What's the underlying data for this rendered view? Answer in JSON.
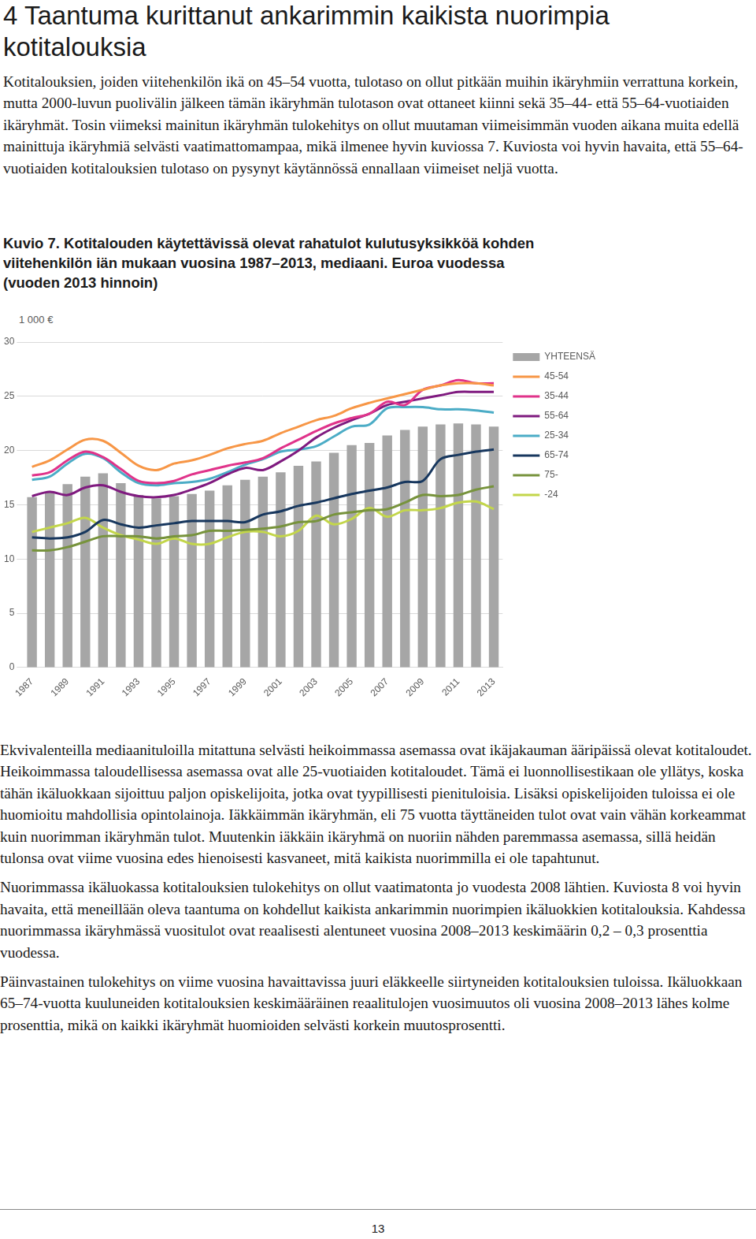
{
  "title": "4 Taantuma kurittanut ankarimmin kaikista nuorimpia kotitalouksia",
  "paragraphs_before": [
    "Kotitalouksien, joiden viitehenkilön ikä on 45–54 vuotta, tulotaso on ollut pitkään muihin ikäryhmiin verrattuna korkein, mutta 2000-luvun puolivälin jälkeen tämän ikäryhmän tulotason ovat ottaneet kiinni sekä 35–44- että 55–64-vuotiaiden ikäryhmät. Tosin viimeksi mainitun ikäryhmän tulokehitys on ollut muutaman viimeisimmän vuoden aikana muita edellä mainittuja ikäryhmiä selvästi vaatimattomampaa, mikä ilmenee hyvin kuviossa 7. Kuviosta voi hyvin havaita, että 55–64-vuotiaiden kotitalouksien tulotaso on pysynyt käytännössä ennallaan viimeiset neljä vuotta."
  ],
  "figure_caption": "Kuvio 7. Kotitalouden käytettävissä olevat rahatulot kulutusyksikköä kohden viitehenkilön iän mukaan vuosina 1987–2013, mediaani. Euroa vuodessa (vuoden 2013 hinnoin)",
  "chart_data": {
    "type": "bar",
    "ylabel": "1 000 €",
    "categories": [
      "1987",
      null,
      "1989",
      null,
      "1991",
      null,
      "1993",
      null,
      "1995",
      null,
      "1997",
      null,
      "1999",
      null,
      "2001",
      null,
      "2003",
      null,
      "2005",
      null,
      "2007",
      null,
      "2009",
      null,
      "2011",
      null,
      "2013"
    ],
    "ylim": [
      0,
      30
    ],
    "yticks": [
      0,
      5,
      10,
      15,
      20,
      25,
      30
    ],
    "grid": true,
    "legend": "right",
    "series": [
      {
        "name": "YHTEENSÄ",
        "type": "bar",
        "color": "#a6a6a6",
        "values": [
          15.7,
          16.2,
          16.9,
          17.6,
          17.9,
          17.0,
          15.9,
          15.6,
          15.8,
          16.0,
          16.3,
          16.8,
          17.3,
          17.6,
          18.0,
          18.6,
          19.0,
          19.8,
          20.5,
          20.7,
          21.4,
          21.9,
          22.2,
          22.4,
          22.5,
          22.4,
          22.2
        ]
      },
      {
        "name": "45-54",
        "type": "line",
        "color": "#f79646",
        "values": [
          18.5,
          19.1,
          20.1,
          21.0,
          20.9,
          19.8,
          18.6,
          18.2,
          18.8,
          19.1,
          19.6,
          20.2,
          20.6,
          20.9,
          21.6,
          22.2,
          22.8,
          23.2,
          23.9,
          24.4,
          24.8,
          25.2,
          25.6,
          26.0,
          26.2,
          26.2,
          26.0
        ]
      },
      {
        "name": "35-44",
        "type": "line",
        "color": "#e0338a",
        "values": [
          17.7,
          18.0,
          19.1,
          19.9,
          19.4,
          18.3,
          17.2,
          17.0,
          17.2,
          17.8,
          18.2,
          18.6,
          18.9,
          19.3,
          20.2,
          21.0,
          21.8,
          22.5,
          23.0,
          23.4,
          24.5,
          24.2,
          25.6,
          26.0,
          26.5,
          26.2,
          26.2
        ]
      },
      {
        "name": "55-64",
        "type": "line",
        "color": "#7f1a7f",
        "values": [
          15.8,
          16.2,
          15.9,
          16.6,
          16.8,
          16.2,
          15.8,
          15.7,
          15.9,
          16.4,
          17.0,
          17.8,
          18.4,
          18.2,
          19.0,
          20.0,
          21.2,
          22.1,
          22.8,
          23.4,
          24.2,
          24.5,
          24.8,
          25.1,
          25.4,
          25.4,
          25.4
        ]
      },
      {
        "name": "25-34",
        "type": "line",
        "color": "#4bacc6",
        "values": [
          17.3,
          17.6,
          18.8,
          19.7,
          19.3,
          18.0,
          17.0,
          16.8,
          17.0,
          17.1,
          17.4,
          18.0,
          18.7,
          19.2,
          19.9,
          20.1,
          20.4,
          21.3,
          22.2,
          22.4,
          23.9,
          24.0,
          24.0,
          23.8,
          23.8,
          23.7,
          23.5
        ]
      },
      {
        "name": "65-74",
        "type": "line",
        "color": "#17375e",
        "values": [
          12.0,
          11.9,
          12.0,
          12.5,
          13.6,
          13.2,
          12.9,
          13.1,
          13.3,
          13.5,
          13.5,
          13.5,
          13.4,
          14.1,
          14.4,
          14.9,
          15.2,
          15.6,
          16.0,
          16.3,
          16.6,
          17.1,
          17.2,
          19.2,
          19.6,
          19.9,
          20.1
        ]
      },
      {
        "name": "75-",
        "type": "line",
        "color": "#77933c",
        "values": [
          10.8,
          10.8,
          11.1,
          11.6,
          12.1,
          12.1,
          12.1,
          11.9,
          12.1,
          12.2,
          12.6,
          12.6,
          12.7,
          12.8,
          13.0,
          13.4,
          13.5,
          14.1,
          14.3,
          14.5,
          14.6,
          15.2,
          15.9,
          15.8,
          15.9,
          16.4,
          16.7
        ]
      },
      {
        "name": "-24",
        "type": "line",
        "color": "#c3d64b",
        "values": [
          12.5,
          12.9,
          13.3,
          13.8,
          12.9,
          12.2,
          11.8,
          11.4,
          11.9,
          11.4,
          11.4,
          12.0,
          12.5,
          12.5,
          12.1,
          12.6,
          14.0,
          13.2,
          13.7,
          14.7,
          13.9,
          14.5,
          14.5,
          14.7,
          15.2,
          15.3,
          14.6
        ]
      }
    ]
  },
  "paragraphs_after": [
    "Ekvivalenteilla mediaanituloilla mitattuna selvästi heikoimmassa asemassa ovat ikäjakauman ääripäissä olevat kotitaloudet. Heikoimmassa taloudellisessa asemassa ovat alle 25-vuotiaiden kotitaloudet. Tämä ei luonnollisestikaan ole yllätys, koska tähän ikäluokkaan sijoittuu paljon opiskelijoita, jotka ovat tyypillisesti pienituloisia. Lisäksi opiskelijoiden tuloissa ei ole huomioitu mahdollisia opintolainoja. Iäkkäimmän ikäryhmän, eli 75 vuotta täyttäneiden tulot ovat vain vähän korkeammat kuin nuorimman ikäryhmän tulot. Muutenkin iäkkäin ikäryhmä on nuoriin nähden paremmassa asemassa, sillä heidän tulonsa ovat viime vuosina edes hienoisesti kasvaneet, mitä kaikista nuorimmilla ei ole tapahtunut.",
    "Nuorimmassa ikäluokassa kotitalouksien tulokehitys on ollut vaatimatonta jo vuodesta 2008 lähtien. Kuviosta 8 voi hyvin havaita, että meneillään oleva taantuma on kohdellut kaikista ankarimmin nuorimpien ikäluokkien kotitalouksia. Kahdessa nuorimmassa ikäryhmässä vuositulot ovat reaalisesti alentuneet vuosina 2008–2013 keskimäärin 0,2 – 0,3 prosenttia vuodessa.",
    "Päinvastainen tulokehitys on viime vuosina havaittavissa juuri eläkkeelle siirtyneiden kotitalouksien tuloissa. Ikäluokkaan 65–74-vuotta kuuluneiden kotitalouksien keskimääräinen reaalitulojen vuosimuutos oli vuosina 2008–2013 lähes kolme prosenttia, mikä on kaikki ikäryhmät huomioiden selvästi korkein muutosprosentti."
  ],
  "page_number": 13
}
